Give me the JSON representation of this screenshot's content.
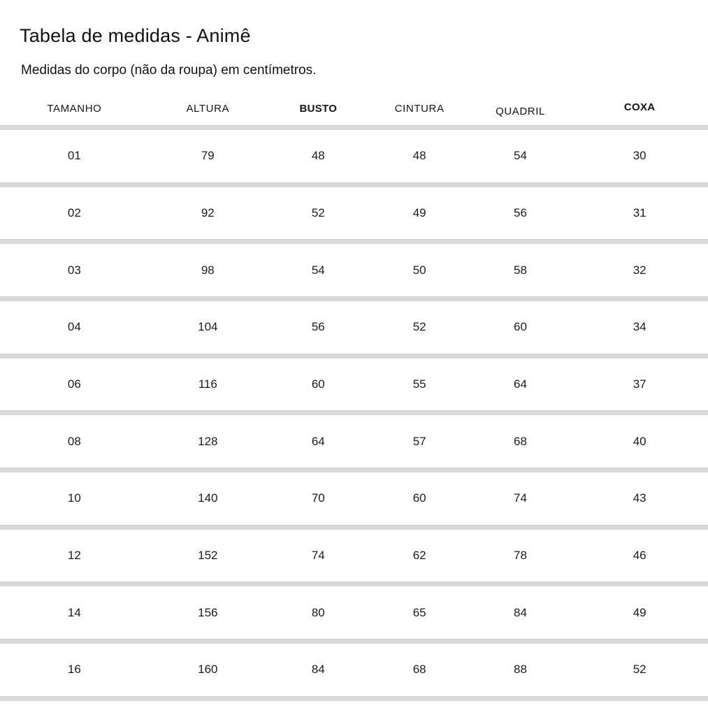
{
  "page": {
    "title": "Tabela de medidas - Animê",
    "subtitle": "Medidas do corpo (não da roupa) em centímetros."
  },
  "table": {
    "columns": [
      {
        "label": "TAMANHO",
        "bold": false
      },
      {
        "label": "ALTURA",
        "bold": false
      },
      {
        "label": "BUSTO",
        "bold": true
      },
      {
        "label": "CINTURA",
        "bold": false
      },
      {
        "label": "QUADRIL",
        "bold": false
      },
      {
        "label": "COXA",
        "bold": true
      }
    ],
    "rows": [
      [
        "01",
        "79",
        "48",
        "48",
        "54",
        "30"
      ],
      [
        "02",
        "92",
        "52",
        "49",
        "56",
        "31"
      ],
      [
        "03",
        "98",
        "54",
        "50",
        "58",
        "32"
      ],
      [
        "04",
        "104",
        "56",
        "52",
        "60",
        "34"
      ],
      [
        "06",
        "116",
        "60",
        "55",
        "64",
        "37"
      ],
      [
        "08",
        "128",
        "64",
        "57",
        "68",
        "40"
      ],
      [
        "10",
        "140",
        "70",
        "60",
        "74",
        "43"
      ],
      [
        "12",
        "152",
        "74",
        "62",
        "78",
        "46"
      ],
      [
        "14",
        "156",
        "80",
        "65",
        "84",
        "49"
      ],
      [
        "16",
        "160",
        "84",
        "68",
        "88",
        "52"
      ]
    ]
  },
  "colors": {
    "background": "#ffffff",
    "divider": "#d9d9d9",
    "text": "#181818"
  }
}
